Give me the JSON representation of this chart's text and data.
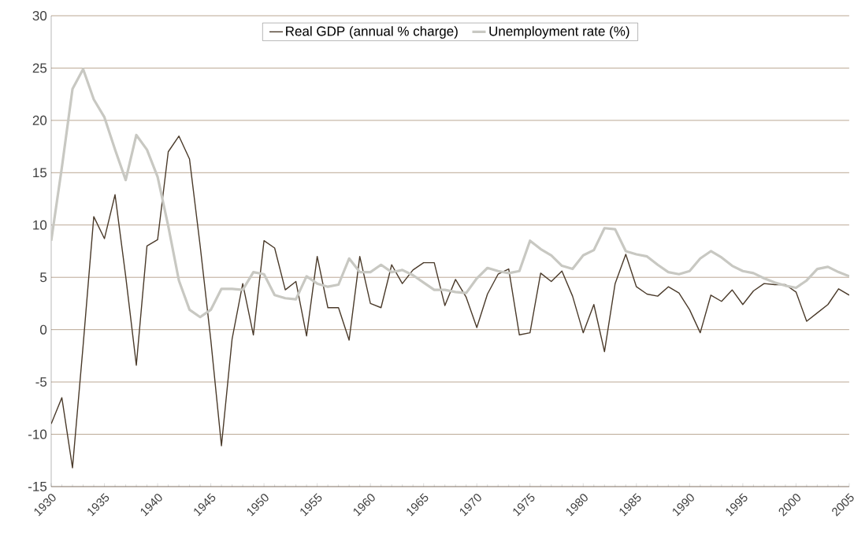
{
  "chart_data": {
    "type": "line",
    "x": [
      1930,
      1931,
      1932,
      1933,
      1934,
      1935,
      1936,
      1937,
      1938,
      1939,
      1940,
      1941,
      1942,
      1943,
      1944,
      1945,
      1946,
      1947,
      1948,
      1949,
      1950,
      1951,
      1952,
      1953,
      1954,
      1955,
      1956,
      1957,
      1958,
      1959,
      1960,
      1961,
      1962,
      1963,
      1964,
      1965,
      1966,
      1967,
      1968,
      1969,
      1970,
      1971,
      1972,
      1973,
      1974,
      1975,
      1976,
      1977,
      1978,
      1979,
      1980,
      1981,
      1982,
      1983,
      1984,
      1985,
      1986,
      1987,
      1988,
      1989,
      1990,
      1991,
      1992,
      1993,
      1994,
      1995,
      1996,
      1997,
      1998,
      1999,
      2000,
      2001,
      2002,
      2003,
      2004,
      2005
    ],
    "series": [
      {
        "name": "Real GDP (annual % charge)",
        "color": "#4a3a2a",
        "values": [
          -9,
          -6.5,
          -13.2,
          -1.5,
          10.8,
          8.7,
          12.9,
          5.1,
          -3.4,
          8.0,
          8.6,
          17.0,
          18.5,
          16.3,
          8.0,
          -1.0,
          -11.1,
          -0.9,
          4.4,
          -0.5,
          8.5,
          7.8,
          3.8,
          4.6,
          -0.6,
          7.0,
          2.1,
          2.1,
          -1.0,
          7.0,
          2.5,
          2.1,
          6.2,
          4.4,
          5.7,
          6.4,
          6.4,
          2.3,
          4.8,
          3.1,
          0.2,
          3.4,
          5.3,
          5.8,
          -0.5,
          -0.3,
          5.4,
          4.6,
          5.6,
          3.2,
          -0.3,
          2.4,
          -2.1,
          4.4,
          7.2,
          4.1,
          3.4,
          3.2,
          4.1,
          3.5,
          1.9,
          -0.3,
          3.3,
          2.7,
          3.8,
          2.4,
          3.7,
          4.4,
          4.3,
          4.3,
          3.6,
          0.8,
          1.6,
          2.4,
          3.9,
          3.3
        ]
      },
      {
        "name": "Unemployment rate (%)",
        "color": "#c8c8c2",
        "values": [
          8.5,
          15.5,
          23.0,
          24.9,
          22.0,
          20.3,
          17.2,
          14.3,
          18.6,
          17.2,
          14.6,
          9.9,
          4.7,
          1.9,
          1.2,
          1.9,
          3.9,
          3.9,
          3.8,
          5.5,
          5.3,
          3.3,
          3.0,
          2.9,
          5.1,
          4.4,
          4.1,
          4.3,
          6.8,
          5.5,
          5.5,
          6.2,
          5.5,
          5.7,
          5.2,
          4.5,
          3.8,
          3.8,
          3.6,
          3.5,
          4.9,
          5.9,
          5.6,
          5.4,
          5.6,
          8.5,
          7.7,
          7.1,
          6.1,
          5.8,
          7.1,
          7.6,
          9.7,
          9.6,
          7.5,
          7.2,
          7.0,
          6.2,
          5.5,
          5.3,
          5.6,
          6.8,
          7.5,
          6.9,
          6.1,
          5.6,
          5.4,
          4.9,
          4.5,
          4.2,
          4.0,
          4.7,
          5.8,
          6.0,
          5.5,
          5.1
        ]
      }
    ],
    "xlim": [
      1930,
      2005
    ],
    "xticks": [
      1930,
      1935,
      1940,
      1945,
      1950,
      1955,
      1960,
      1965,
      1970,
      1975,
      1980,
      1985,
      1990,
      1995,
      2000,
      2005
    ],
    "ylim": [
      -15,
      30
    ],
    "yticks": [
      -15,
      -10,
      -5,
      0,
      5,
      10,
      15,
      20,
      25,
      30
    ],
    "grid": "y",
    "legend": "top",
    "marker": "none",
    "line_style": "solid"
  }
}
